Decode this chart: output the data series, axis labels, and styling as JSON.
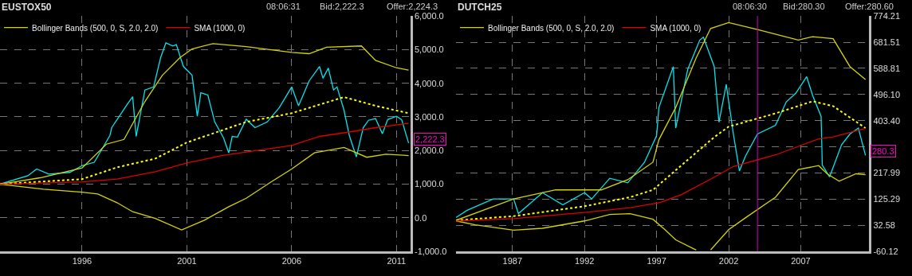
{
  "chart_data": [
    {
      "type": "line",
      "title": "EUSTOX50",
      "annotations": [
        "08:06:31",
        "Bid:2,222.3",
        "Offer:2,224.3",
        {
          "text": "2,222.3",
          "x": "2011-08",
          "y": 2222.3
        }
      ],
      "xlim": [
        "1992-02",
        "2011-09"
      ],
      "xticks": [
        {
          "value": "1996",
          "label": "1996"
        },
        {
          "value": "2001",
          "label": "2001"
        },
        {
          "value": "2006",
          "label": "2006"
        },
        {
          "value": "2011",
          "label": "2011"
        }
      ],
      "ylim": [
        -1000,
        6000
      ],
      "yticks": [
        {
          "value": -1000,
          "label": "-1,000.0"
        },
        {
          "value": 0,
          "label": "0.0"
        },
        {
          "value": 1000,
          "label": "1,000.0"
        },
        {
          "value": 2000,
          "label": "2,000.0"
        },
        {
          "value": 3000,
          "label": "3,000.0"
        },
        {
          "value": 4000,
          "label": "4,000.0"
        },
        {
          "value": 5000,
          "label": "5,000.0"
        },
        {
          "value": 6000,
          "label": "6,000.0"
        }
      ],
      "grid": true,
      "legend": "top left",
      "series": [
        {
          "color": "#00e5ee",
          "x": [
            "1992-02",
            "1993-06",
            "1993-11",
            "1994-06",
            "1995-06",
            "1996-01",
            "1996-08",
            "1997-05",
            "1997-06",
            "1998-03",
            "1998-06",
            "1998-08",
            "1999-01",
            "1999-06",
            "1999-10",
            "2000-01",
            "2000-05",
            "2000-07",
            "2000-11",
            "2001-04",
            "2001-07",
            "2001-09",
            "2002-01",
            "2002-05",
            "2002-10",
            "2003-01",
            "2003-03",
            "2003-06",
            "2003-11",
            "2004-04",
            "2004-11",
            "2005-06",
            "2006-01",
            "2006-05",
            "2006-11",
            "2007-05",
            "2007-07",
            "2007-10",
            "2008-01",
            "2008-03",
            "2008-07",
            "2008-10",
            "2009-02",
            "2009-06",
            "2009-09",
            "2010-01",
            "2010-05",
            "2010-08",
            "2011-01",
            "2011-04",
            "2011-08"
          ],
          "values": [
            1000,
            1250,
            1450,
            1300,
            1350,
            1550,
            1650,
            2450,
            2680,
            3380,
            3600,
            2420,
            3800,
            3890,
            4760,
            5200,
            5110,
            5150,
            4500,
            4240,
            3020,
            3720,
            3650,
            2850,
            2380,
            1930,
            2420,
            2400,
            2930,
            2680,
            2850,
            3280,
            3890,
            3330,
            4070,
            4500,
            4150,
            4450,
            3800,
            3890,
            3200,
            2450,
            1810,
            2680,
            2900,
            2950,
            2500,
            2920,
            3020,
            2920,
            2222.3
          ]
        },
        {
          "name": "Bollinger Bands (500, 0, S, 2.0, 2.0)",
          "color": "#d4d400",
          "x": [
            "1992-02",
            "1994-01",
            "1996-01",
            "1997-03",
            "1998-01",
            "1999-01",
            "1999-11",
            "2000-09",
            "2001-04",
            "2002-04",
            "2003-11",
            "2006-01",
            "2006-11",
            "2007-09",
            "2009-05",
            "2010-01",
            "2011-01",
            "2011-08"
          ],
          "values": [
            1000,
            1190,
            1480,
            2190,
            2330,
            3460,
            4240,
            4760,
            5020,
            5180,
            5090,
            4920,
            4880,
            5070,
            5110,
            4680,
            4460,
            4390
          ]
        },
        {
          "color": "#ffff00",
          "line_style": "dotted",
          "x": [
            "1992-02",
            "1996-01",
            "1997-09",
            "1999-07",
            "2001-01",
            "2001-11",
            "2003-11",
            "2006-01",
            "2008-07",
            "2010-01",
            "2011-08"
          ],
          "values": [
            1000,
            1150,
            1500,
            1760,
            2240,
            2420,
            2850,
            3110,
            3590,
            3330,
            3110
          ]
        },
        {
          "color": "#d4d400",
          "x": [
            "1992-02",
            "1994-03",
            "1996-01",
            "1996-10",
            "1997-09",
            "1998-06",
            "1999-07",
            "2000-10",
            "2001-11",
            "2003-01",
            "2003-11",
            "2005-01",
            "2006-01",
            "2007-02",
            "2008-07",
            "2009-08",
            "2010-07",
            "2011-08"
          ],
          "values": [
            1000,
            850,
            760,
            710,
            450,
            180,
            -20,
            -360,
            -70,
            330,
            580,
            1060,
            1450,
            1930,
            2090,
            1800,
            1890,
            1850
          ]
        },
        {
          "name": "SMA (1000, 0)",
          "color": "#dd0000",
          "x": [
            "1992-02",
            "1996-01",
            "1997-09",
            "1999-07",
            "2001-01",
            "2002-09",
            "2006-01",
            "2007-05",
            "2008-10",
            "2010-01",
            "2011-08"
          ],
          "values": [
            1000,
            1070,
            1150,
            1370,
            1630,
            1850,
            2150,
            2420,
            2550,
            2680,
            2810
          ]
        }
      ]
    },
    {
      "type": "line",
      "title": "DUTCH25",
      "annotations": [
        "08:06:30",
        "Bid:280.30",
        "Offer:280.60",
        {
          "text": "280.3",
          "x": "2011-07",
          "y": 280.3
        }
      ],
      "xlim": [
        "1983-02",
        "2011-10"
      ],
      "xticks": [
        {
          "value": "1987",
          "label": "1987"
        },
        {
          "value": "1992",
          "label": "1992"
        },
        {
          "value": "1997",
          "label": "1997"
        },
        {
          "value": "2002",
          "label": "2002"
        },
        {
          "value": "2007",
          "label": "2007"
        }
      ],
      "ylim": [
        -60.12,
        774.21
      ],
      "yticks": [
        -60.12,
        32.58,
        125.29,
        217.99,
        {
          "value": 310.69,
          "label": null
        },
        {
          "value": 403.4,
          "label": "403.40"
        },
        {
          "value": 496.1,
          "label": "496.10"
        },
        588.81,
        681.51,
        774.21
      ],
      "grid": true,
      "legend": "top left",
      "ref_lines": [
        {
          "axis": "x",
          "value": "2004-01",
          "color": "#cc00cc"
        }
      ],
      "series": [
        {
          "color": "#00e5ee",
          "x": [
            "1983-02",
            "1983-11",
            "1985-09",
            "1987-02",
            "1987-06",
            "1989-02",
            "1990-07",
            "1992-01",
            "1992-07",
            "1993-10",
            "1995-01",
            "1996-03",
            "1997-01",
            "1997-03",
            "1998-03",
            "1998-05",
            "1999-03",
            "2000-01",
            "2000-04",
            "2001-01",
            "2001-05",
            "2001-11",
            "2002-05",
            "2002-10",
            "2003-03",
            "2004-01",
            "2005-04",
            "2006-01",
            "2006-09",
            "2007-06",
            "2007-11",
            "2008-06",
            "2008-07",
            "2009-01",
            "2009-11",
            "2010-06",
            "2011-01",
            "2011-07"
          ],
          "values": [
            60,
            85,
            126,
            126,
            74,
            148,
            105,
            148,
            126,
            199,
            183,
            256,
            350,
            450,
            595,
            377,
            585,
            689,
            699,
            595,
            398,
            532,
            356,
            225,
            277,
            356,
            387,
            470,
            501,
            559,
            492,
            418,
            246,
            204,
            318,
            356,
            377,
            280.3
          ]
        },
        {
          "name": "Bollinger Bands (500, 0, S, 2.0, 2.0)",
          "color": "#d4d400",
          "x": [
            "1983-02",
            "1987-02",
            "1990-01",
            "1993-03",
            "1995-01",
            "1996-10",
            "1997-03",
            "1998-05",
            "1999-10",
            "2000-10",
            "2002-01",
            "2004-01",
            "2006-11",
            "2007-11",
            "2009-04",
            "2010-06",
            "2011-07"
          ],
          "values": [
            50,
            126,
            158,
            158,
            194,
            256,
            336,
            450,
            626,
            730,
            751,
            726,
            689,
            701,
            694,
            595,
            549
          ]
        },
        {
          "color": "#ffff00",
          "line_style": "dotted",
          "x": [
            "1983-02",
            "1987-02",
            "1992-01",
            "1995-03",
            "1996-10",
            "1998-10",
            "2001-01",
            "2002-01",
            "2005-04",
            "2007-11",
            "2009-04",
            "2011-07"
          ],
          "values": [
            50,
            65,
            100,
            132,
            158,
            246,
            345,
            382,
            429,
            472,
            455,
            377
          ]
        },
        {
          "color": "#d4d400",
          "x": [
            "1983-02",
            "1984-06",
            "1987-02",
            "1989-02",
            "1992-01",
            "1993-10",
            "1995-03",
            "1996-10",
            "1997-08",
            "1998-05",
            "1999-10",
            "2000-05",
            "2000-10",
            "2002-01",
            "2003-03",
            "2005-04",
            "2006-11",
            "2008-04",
            "2008-11",
            "2009-09",
            "2010-11",
            "2011-07"
          ],
          "values": [
            48,
            34,
            15,
            22,
            48,
            71,
            74,
            54,
            17,
            -19,
            -55,
            null,
            -55,
            17,
            59,
            132,
            230,
            244,
            215,
            189,
            215,
            212
          ]
        },
        {
          "name": "SMA (1000, 0)",
          "color": "#dd0000",
          "x": [
            "1983-02",
            "1987-02",
            "1992-01",
            "1995-03",
            "1997-04",
            "1998-10",
            "2000-10",
            "2002-05",
            "2005-04",
            "2008-04",
            "2009-04",
            "2011-07"
          ],
          "values": [
            48,
            56,
            78,
            95,
            113,
            142,
            196,
            241,
            282,
            339,
            346,
            376
          ]
        }
      ]
    }
  ]
}
